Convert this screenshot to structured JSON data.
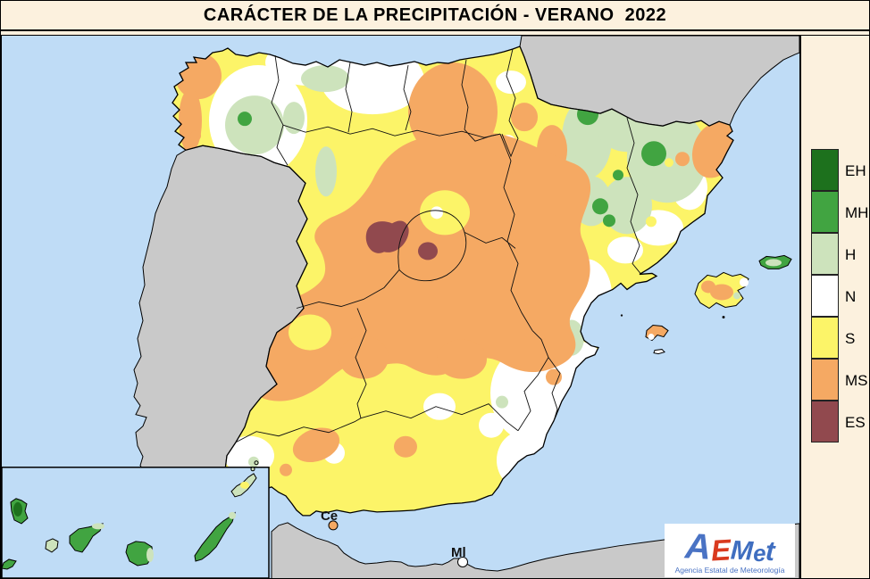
{
  "title": "CARÁCTER DE LA PRECIPITACIÓN - VERANO  2022",
  "legend": {
    "items": [
      {
        "code": "EH",
        "color": "#1D711D"
      },
      {
        "code": "MH",
        "color": "#41A441"
      },
      {
        "code": "H",
        "color": "#CDE3BC"
      },
      {
        "code": "N",
        "color": "#FFFFFF"
      },
      {
        "code": "S",
        "color": "#FCF468"
      },
      {
        "code": "MS",
        "color": "#F5A963"
      },
      {
        "code": "ES",
        "color": "#91494E"
      }
    ]
  },
  "map": {
    "colors": {
      "sea": "#BFDCF6",
      "neighbor_land": "#C9C9C9",
      "coastline": "#000000"
    },
    "labels": {
      "ceuta": "Ce",
      "melilla": "Ml"
    }
  },
  "logo": {
    "letters": [
      {
        "t": "A",
        "color": "#4A73C4",
        "size": 40
      },
      {
        "t": "E",
        "color": "#D93A1F",
        "size": 33
      },
      {
        "t": "M",
        "color": "#3F6EC0",
        "size": 30
      },
      {
        "t": "e",
        "color": "#3F6EC0",
        "size": 26
      },
      {
        "t": "t",
        "color": "#3F6EC0",
        "size": 31
      }
    ],
    "caption": "Agencia Estatal de Meteorología"
  }
}
